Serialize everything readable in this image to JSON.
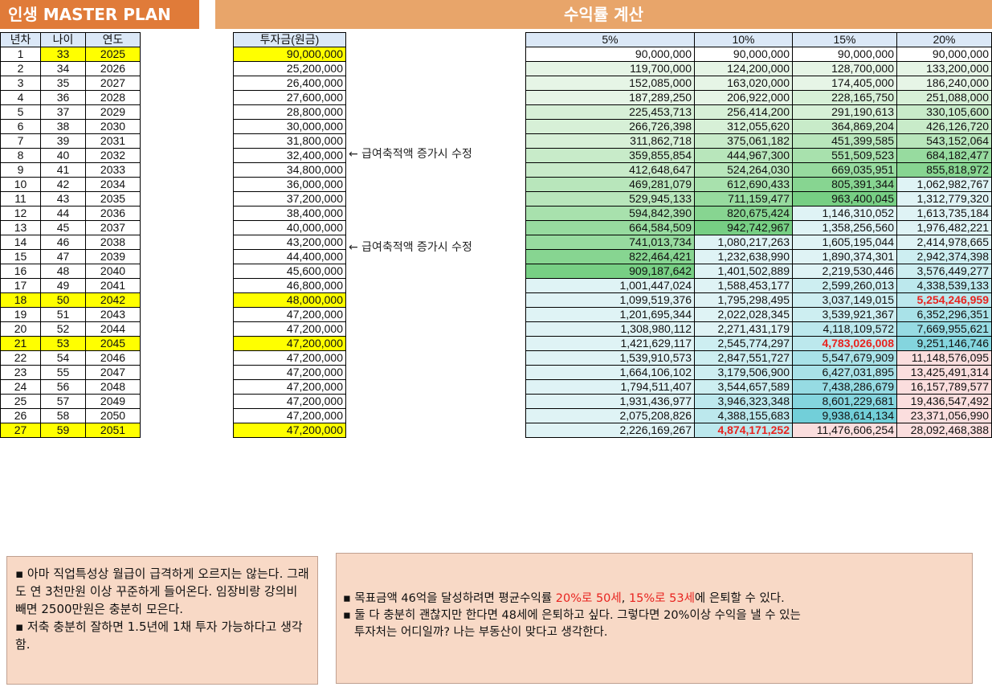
{
  "header": {
    "left_title": "인생 MASTER PLAN",
    "right_title": "수익률 계산"
  },
  "left_headers": [
    "년차",
    "나이",
    "연도"
  ],
  "invest_header": "투자금(원금)",
  "return_headers": [
    "5%",
    "10%",
    "15%",
    "20%"
  ],
  "rows": [
    {
      "n": "1",
      "age": "33",
      "year": "2025",
      "inv": "90,000,000",
      "r": [
        "90,000,000",
        "90,000,000",
        "90,000,000",
        "90,000,000"
      ]
    },
    {
      "n": "2",
      "age": "34",
      "year": "2026",
      "inv": "25,200,000",
      "r": [
        "119,700,000",
        "124,200,000",
        "128,700,000",
        "133,200,000"
      ]
    },
    {
      "n": "3",
      "age": "35",
      "year": "2027",
      "inv": "26,400,000",
      "r": [
        "152,085,000",
        "163,020,000",
        "174,405,000",
        "186,240,000"
      ]
    },
    {
      "n": "4",
      "age": "36",
      "year": "2028",
      "inv": "27,600,000",
      "r": [
        "187,289,250",
        "206,922,000",
        "228,165,750",
        "251,088,000"
      ]
    },
    {
      "n": "5",
      "age": "37",
      "year": "2029",
      "inv": "28,800,000",
      "r": [
        "225,453,713",
        "256,414,200",
        "291,190,613",
        "330,105,600"
      ]
    },
    {
      "n": "6",
      "age": "38",
      "year": "2030",
      "inv": "30,000,000",
      "r": [
        "266,726,398",
        "312,055,620",
        "364,869,204",
        "426,126,720"
      ]
    },
    {
      "n": "7",
      "age": "39",
      "year": "2031",
      "inv": "31,800,000",
      "r": [
        "311,862,718",
        "375,061,182",
        "451,399,585",
        "543,152,064"
      ]
    },
    {
      "n": "8",
      "age": "40",
      "year": "2032",
      "inv": "32,400,000",
      "r": [
        "359,855,854",
        "444,967,300",
        "551,509,523",
        "684,182,477"
      ]
    },
    {
      "n": "9",
      "age": "41",
      "year": "2033",
      "inv": "34,800,000",
      "r": [
        "412,648,647",
        "524,264,030",
        "669,035,951",
        "855,818,972"
      ]
    },
    {
      "n": "10",
      "age": "42",
      "year": "2034",
      "inv": "36,000,000",
      "r": [
        "469,281,079",
        "612,690,433",
        "805,391,344",
        "1,062,982,767"
      ]
    },
    {
      "n": "11",
      "age": "43",
      "year": "2035",
      "inv": "37,200,000",
      "r": [
        "529,945,133",
        "711,159,477",
        "963,400,045",
        "1,312,779,320"
      ]
    },
    {
      "n": "12",
      "age": "44",
      "year": "2036",
      "inv": "38,400,000",
      "r": [
        "594,842,390",
        "820,675,424",
        "1,146,310,052",
        "1,613,735,184"
      ]
    },
    {
      "n": "13",
      "age": "45",
      "year": "2037",
      "inv": "40,000,000",
      "r": [
        "664,584,509",
        "942,742,967",
        "1,358,256,560",
        "1,976,482,221"
      ]
    },
    {
      "n": "14",
      "age": "46",
      "year": "2038",
      "inv": "43,200,000",
      "r": [
        "741,013,734",
        "1,080,217,263",
        "1,605,195,044",
        "2,414,978,665"
      ]
    },
    {
      "n": "15",
      "age": "47",
      "year": "2039",
      "inv": "44,400,000",
      "r": [
        "822,464,421",
        "1,232,638,990",
        "1,890,374,301",
        "2,942,374,398"
      ]
    },
    {
      "n": "16",
      "age": "48",
      "year": "2040",
      "inv": "45,600,000",
      "r": [
        "909,187,642",
        "1,401,502,889",
        "2,219,530,446",
        "3,576,449,277"
      ]
    },
    {
      "n": "17",
      "age": "49",
      "year": "2041",
      "inv": "46,800,000",
      "r": [
        "1,001,447,024",
        "1,588,453,177",
        "2,599,260,013",
        "4,338,539,133"
      ]
    },
    {
      "n": "18",
      "age": "50",
      "year": "2042",
      "inv": "48,000,000",
      "r": [
        "1,099,519,376",
        "1,795,298,495",
        "3,037,149,015",
        "5,254,246,959"
      ]
    },
    {
      "n": "19",
      "age": "51",
      "year": "2043",
      "inv": "47,200,000",
      "r": [
        "1,201,695,344",
        "2,022,028,345",
        "3,539,921,367",
        "6,352,296,351"
      ]
    },
    {
      "n": "20",
      "age": "52",
      "year": "2044",
      "inv": "47,200,000",
      "r": [
        "1,308,980,112",
        "2,271,431,179",
        "4,118,109,572",
        "7,669,955,621"
      ]
    },
    {
      "n": "21",
      "age": "53",
      "year": "2045",
      "inv": "47,200,000",
      "r": [
        "1,421,629,117",
        "2,545,774,297",
        "4,783,026,008",
        "9,251,146,746"
      ]
    },
    {
      "n": "22",
      "age": "54",
      "year": "2046",
      "inv": "47,200,000",
      "r": [
        "1,539,910,573",
        "2,847,551,727",
        "5,547,679,909",
        "11,148,576,095"
      ]
    },
    {
      "n": "23",
      "age": "55",
      "year": "2047",
      "inv": "47,200,000",
      "r": [
        "1,664,106,102",
        "3,179,506,900",
        "6,427,031,895",
        "13,425,491,314"
      ]
    },
    {
      "n": "24",
      "age": "56",
      "year": "2048",
      "inv": "47,200,000",
      "r": [
        "1,794,511,407",
        "3,544,657,589",
        "7,438,286,679",
        "16,157,789,577"
      ]
    },
    {
      "n": "25",
      "age": "57",
      "year": "2049",
      "inv": "47,200,000",
      "r": [
        "1,931,436,977",
        "3,946,323,348",
        "8,601,229,681",
        "19,436,547,492"
      ]
    },
    {
      "n": "26",
      "age": "58",
      "year": "2050",
      "inv": "47,200,000",
      "r": [
        "2,075,208,826",
        "4,388,155,683",
        "9,938,614,134",
        "23,371,056,990"
      ]
    },
    {
      "n": "27",
      "age": "59",
      "year": "2051",
      "inv": "47,200,000",
      "r": [
        "2,226,169,267",
        "4,874,171,252",
        "11,476,606,254",
        "28,092,468,388"
      ]
    }
  ],
  "side_notes": [
    "← 급여축적액 증가시 수정",
    "← 급여축적액 증가시 수정"
  ],
  "notes_left": [
    "▪ 아마 직업특성상 월급이 급격하게 오르지는 않는다. 그래도 연 3천만원 이상 꾸준하게 들어온다. 임장비랑 강의비 빼면 2500만원은 충분히 모은다.",
    "▪  저축 충분히 잘하면 1.5년에 1채 투자 가능하다고 생각함."
  ],
  "notes_right": {
    "line1_prefix": "▪ 목표금액 46억을 달성하려면 평균수익률 ",
    "line1_red1": "20%로 50세",
    "line1_sep": ", ",
    "line1_red2": "15%로 53세",
    "line1_suffix": "에 은퇴할 수 있다.",
    "line2": "▪ 둘 다 충분히 괜찮지만 한다면 48세에 은퇴하고 싶다. 그렇다면 20%이상 수익을 낼 수 있는",
    "line3": "투자처는 어디일까? 나는 부동산이 맞다고 생각한다."
  },
  "highlights": {
    "yellow_rows": [
      18,
      21,
      27
    ],
    "red_cells": [
      {
        "row": 18,
        "col": 3
      },
      {
        "row": 21,
        "col": 2
      },
      {
        "row": 27,
        "col": 1
      }
    ]
  },
  "colors": {
    "banner_left": "#e07b39",
    "banner_right": "#e8a56a",
    "highlight": "#ffff00",
    "red_text": "#e8231f",
    "note_bg": "#f8d9c6",
    "header_bg": "#dbe8f7"
  }
}
